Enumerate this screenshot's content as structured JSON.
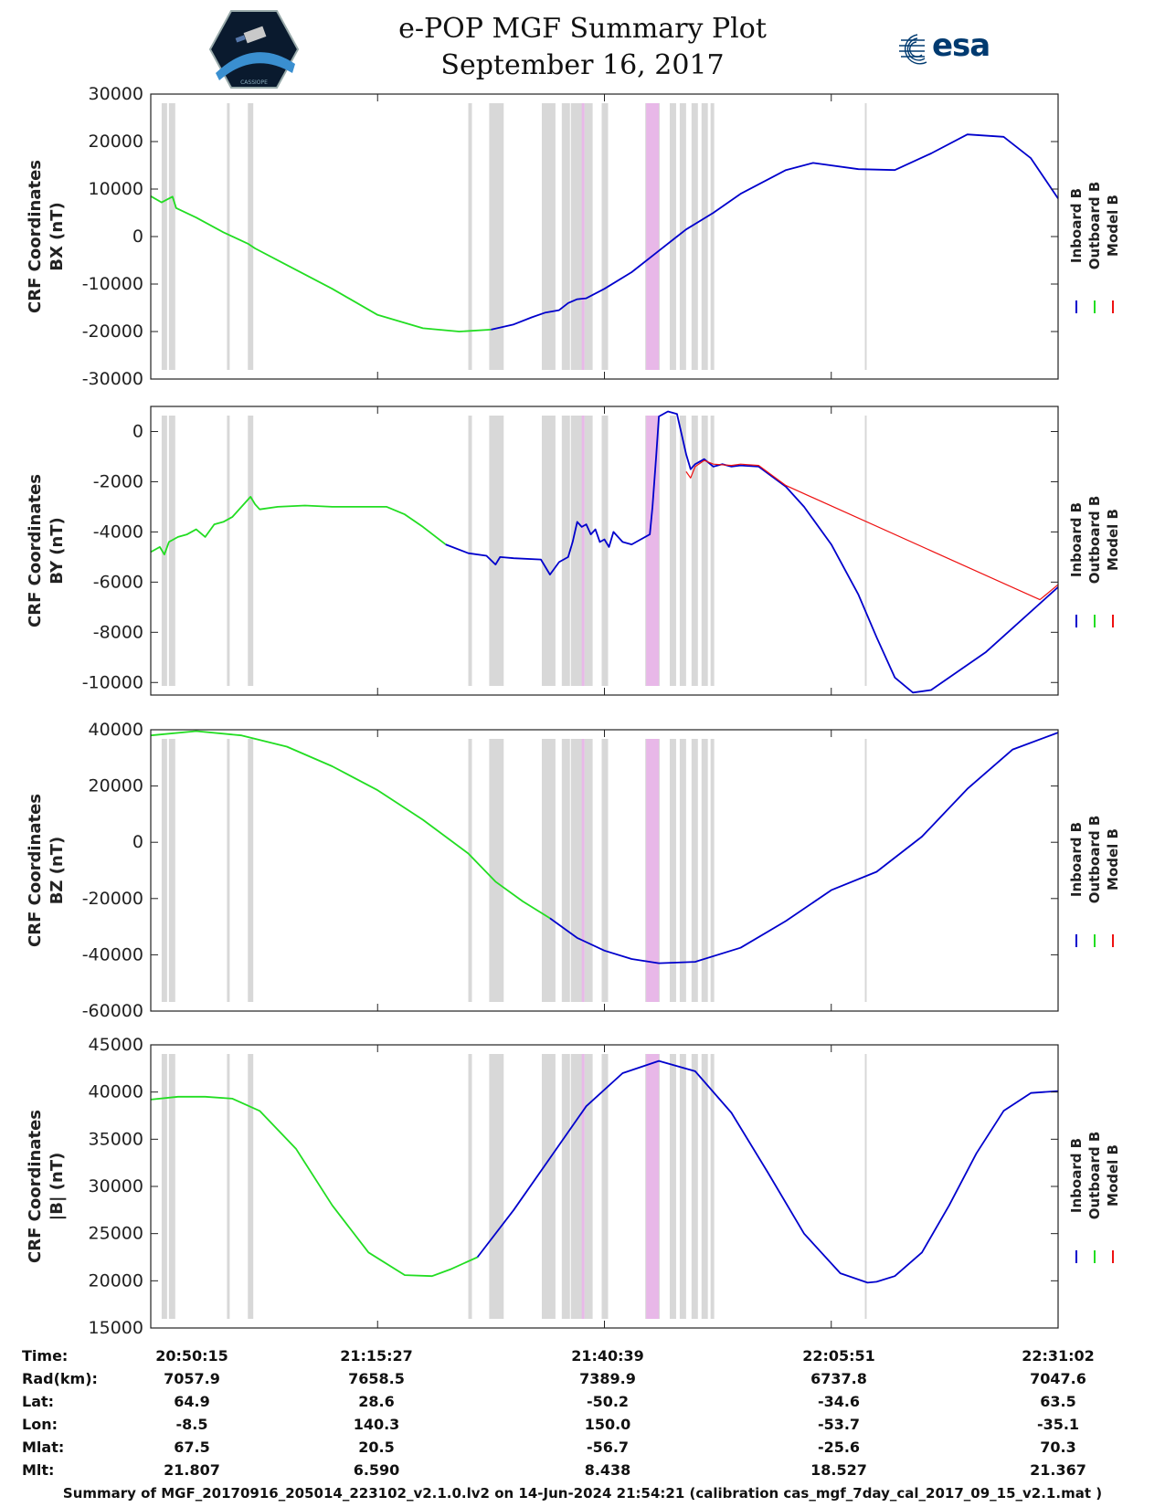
{
  "header": {
    "title": "e-POP MGF Summary Plot",
    "date": "September 16, 2017",
    "left_logo_caption": "CASSIOPE",
    "right_logo_text": "esa"
  },
  "legend": {
    "entries": [
      {
        "label": "Inboard B",
        "color": "#0000cc"
      },
      {
        "label": "Outboard B",
        "color": "#22dd22"
      },
      {
        "label": "Model B",
        "color": "#ee1111"
      }
    ]
  },
  "colors": {
    "gap_band": "#d8d8d8",
    "pink_band": "#e8b8e8",
    "inboard": "#0000cc",
    "outboard": "#22dd22",
    "model": "#ee1111"
  },
  "chart_data": [
    {
      "type": "line",
      "name": "BX",
      "ylabel": "CRF Coordinates",
      "ylabel2": "BX (nT)",
      "ylim": [
        -30000,
        30000
      ],
      "yticks": [
        30000,
        20000,
        10000,
        0,
        -10000,
        -20000,
        -30000
      ],
      "ytick_labels": [
        "30000",
        "20000",
        "10000",
        "0",
        "-10000",
        "-20000",
        "-30000"
      ],
      "xlim": [
        0,
        100
      ],
      "series": [
        {
          "name": "Outboard B",
          "x": [
            0,
            1.2,
            2.4,
            2.8,
            5,
            8,
            10.7,
            11.5,
            15,
            20,
            25,
            30,
            34,
            37.5
          ],
          "values": [
            8500,
            7200,
            8400,
            6000,
            4000,
            900,
            -1500,
            -2500,
            -6000,
            -11000,
            -16500,
            -19300,
            -20000,
            -19600
          ]
        },
        {
          "name": "Inboard B",
          "x": [
            37.5,
            40,
            42,
            43.5,
            45,
            46,
            47,
            48,
            50,
            53,
            56,
            58,
            59,
            62,
            65,
            70,
            73,
            78,
            82,
            86,
            90,
            94,
            97,
            100
          ],
          "values": [
            -19600,
            -18500,
            -17000,
            -16000,
            -15500,
            -14000,
            -13200,
            -13000,
            -11000,
            -7500,
            -3000,
            0,
            1500,
            5000,
            9000,
            14000,
            15500,
            14200,
            14000,
            17500,
            21500,
            21000,
            16500,
            8000
          ]
        }
      ]
    },
    {
      "type": "line",
      "name": "BY",
      "ylabel": "CRF Coordinates",
      "ylabel2": "BY (nT)",
      "ylim": [
        -10500,
        1000
      ],
      "yticks": [
        0,
        -2000,
        -4000,
        -6000,
        -8000,
        -10000
      ],
      "ytick_labels": [
        "0",
        "-2000",
        "-4000",
        "-6000",
        "-8000",
        "-10000"
      ],
      "xlim": [
        0,
        100
      ],
      "series": [
        {
          "name": "Outboard B",
          "x": [
            0,
            1,
            1.5,
            2,
            3,
            4,
            5,
            6,
            7,
            8,
            9,
            10,
            11,
            11.5,
            12,
            14,
            17,
            20,
            23,
            26,
            28,
            30,
            32.5
          ],
          "values": [
            -4800,
            -4600,
            -4900,
            -4400,
            -4200,
            -4100,
            -3900,
            -4200,
            -3700,
            -3600,
            -3400,
            -3000,
            -2600,
            -2900,
            -3100,
            -3000,
            -2950,
            -3000,
            -3000,
            -3000,
            -3300,
            -3800,
            -4500
          ]
        },
        {
          "name": "Inboard B",
          "x": [
            32.5,
            35,
            37,
            38,
            38.5,
            40,
            43,
            44,
            45,
            46,
            46.5,
            47,
            47.5,
            48,
            48.5,
            49,
            49.5,
            50,
            50.5,
            51,
            52,
            53,
            54,
            55,
            55.3,
            55.7,
            56,
            57,
            58,
            59,
            59.5,
            60,
            61,
            62,
            63,
            64,
            65,
            67,
            70,
            72,
            75,
            78,
            80,
            82,
            84,
            86,
            92,
            100
          ],
          "values": [
            -4500,
            -4850,
            -4950,
            -5300,
            -5000,
            -5050,
            -5100,
            -5700,
            -5200,
            -5000,
            -4400,
            -3600,
            -3800,
            -3700,
            -4100,
            -3900,
            -4400,
            -4300,
            -4600,
            -4000,
            -4400,
            -4500,
            -4300,
            -4100,
            -3000,
            -1000,
            600,
            800,
            700,
            -900,
            -1500,
            -1300,
            -1100,
            -1400,
            -1300,
            -1400,
            -1350,
            -1400,
            -2200,
            -3000,
            -4500,
            -6500,
            -8200,
            -9800,
            -10400,
            -10300,
            -8800,
            -6200
          ]
        },
        {
          "name": "Model B",
          "x": [
            59,
            59.5,
            60,
            61,
            62,
            64,
            65,
            67,
            70,
            98,
            100
          ],
          "values": [
            -1600,
            -1850,
            -1400,
            -1150,
            -1300,
            -1350,
            -1300,
            -1350,
            -2150,
            -6700,
            -6100
          ]
        }
      ]
    },
    {
      "type": "line",
      "name": "BZ",
      "ylabel": "CRF Coordinates",
      "ylabel2": "BZ (nT)",
      "ylim": [
        -60000,
        40000
      ],
      "yticks": [
        40000,
        20000,
        0,
        -20000,
        -40000,
        -60000
      ],
      "ytick_labels": [
        "40000",
        "20000",
        "0",
        "-20000",
        "-40000",
        "-60000"
      ],
      "xlim": [
        0,
        100
      ],
      "series": [
        {
          "name": "Outboard B",
          "x": [
            0,
            5,
            10,
            15,
            20,
            25,
            30,
            35,
            38,
            41,
            44
          ],
          "values": [
            38000,
            39500,
            38000,
            34000,
            27000,
            18500,
            8000,
            -4000,
            -14000,
            -21000,
            -27000
          ]
        },
        {
          "name": "Inboard B",
          "x": [
            44,
            47,
            50,
            53,
            56,
            60,
            65,
            70,
            75,
            80,
            85,
            90,
            95,
            100
          ],
          "values": [
            -27000,
            -34000,
            -38500,
            -41500,
            -43000,
            -42500,
            -37500,
            -28000,
            -17000,
            -10500,
            2000,
            19000,
            33000,
            39000
          ]
        }
      ]
    },
    {
      "type": "line",
      "name": "|B|",
      "ylabel": "CRF Coordinates",
      "ylabel2": "|B| (nT)",
      "ylim": [
        15000,
        45000
      ],
      "yticks": [
        45000,
        40000,
        35000,
        30000,
        25000,
        20000,
        15000
      ],
      "ytick_labels": [
        "45000",
        "40000",
        "35000",
        "30000",
        "25000",
        "20000",
        "15000"
      ],
      "xlim": [
        0,
        100
      ],
      "series": [
        {
          "name": "Outboard B",
          "x": [
            0,
            3,
            6,
            9,
            12,
            16,
            20,
            24,
            28,
            31,
            33,
            36
          ],
          "values": [
            39200,
            39500,
            39500,
            39300,
            38000,
            34000,
            28000,
            23000,
            20600,
            20500,
            21200,
            22500
          ]
        },
        {
          "name": "Inboard B",
          "x": [
            36,
            40,
            44,
            48,
            52,
            56,
            60,
            64,
            68,
            72,
            76,
            79,
            80,
            82,
            85,
            88,
            91,
            94,
            97,
            100
          ],
          "values": [
            22500,
            27500,
            33000,
            38500,
            42000,
            43300,
            42200,
            37800,
            31500,
            25000,
            20800,
            19800,
            19900,
            20500,
            23000,
            28000,
            33500,
            38000,
            39900,
            40100
          ]
        }
      ]
    }
  ],
  "bands": {
    "gray": [
      [
        1.2,
        1.8
      ],
      [
        2.0,
        2.7
      ],
      [
        8.4,
        8.7
      ],
      [
        10.7,
        11.3
      ],
      [
        35.0,
        35.4
      ],
      [
        37.3,
        38.9
      ],
      [
        43.1,
        44.6
      ],
      [
        45.3,
        46.2
      ],
      [
        46.3,
        47.6
      ],
      [
        47.8,
        48.7
      ],
      [
        49.7,
        50.4
      ],
      [
        54.5,
        56.1
      ],
      [
        57.2,
        57.9
      ],
      [
        58.3,
        59.0
      ],
      [
        59.6,
        60.3
      ],
      [
        60.7,
        61.4
      ],
      [
        61.7,
        62.1
      ],
      [
        78.7,
        78.9
      ]
    ],
    "pink": [
      [
        54.6,
        56.0
      ],
      [
        47.5,
        47.8
      ]
    ]
  },
  "info_table": {
    "labels": [
      "Time:",
      "Rad(km):",
      "Lat:",
      "Lon:",
      "Mlat:",
      "Mlt:"
    ],
    "columns": [
      [
        "20:50:15",
        "7057.9",
        "64.9",
        "-8.5",
        "67.5",
        "21.807"
      ],
      [
        "21:15:27",
        "7658.5",
        "28.6",
        "140.3",
        "20.5",
        "6.590"
      ],
      [
        "21:40:39",
        "7389.9",
        "-50.2",
        "150.0",
        "-56.7",
        "8.438"
      ],
      [
        "22:05:51",
        "6737.8",
        "-34.6",
        "-53.7",
        "-25.6",
        "18.527"
      ],
      [
        "22:31:02",
        "7047.6",
        "63.5",
        "-35.1",
        "70.3",
        "21.367"
      ]
    ]
  },
  "footer": "Summary of MGF_20170916_205014_223102_v2.1.0.lv2 on 14-Jun-2024 21:54:21 (calibration cas_mgf_7day_cal_2017_09_15_v2.1.mat )"
}
